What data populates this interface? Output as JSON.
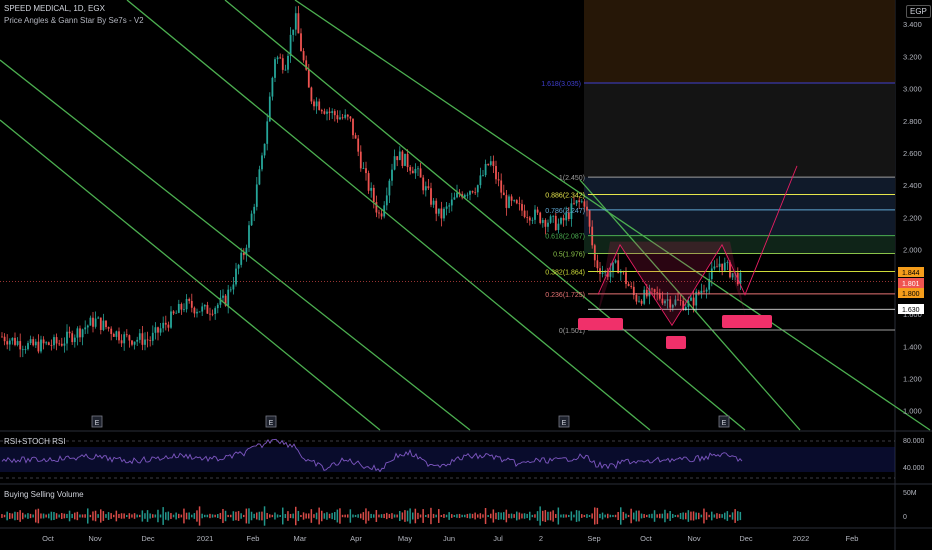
{
  "header": {
    "symbol": "SPEED MEDICAL, 1D, EGX",
    "indicator": "Price Angles & Gann Star By Se7s - V2",
    "currency": "EGP"
  },
  "panes": {
    "rsi_label": "RSI+STOCH RSI",
    "volume_label": "Buying Selling Volume"
  },
  "chart_data": {
    "type": "candlestick",
    "price_axis_ticks": [
      "3.400",
      "3.200",
      "3.000",
      "2.800",
      "2.600",
      "2.400",
      "2.200",
      "2.000",
      "1.800",
      "1.600",
      "1.400",
      "1.200",
      "1.000"
    ],
    "price_ylim": [
      0.88,
      3.55
    ],
    "time_axis_labels": [
      "Oct",
      "Nov",
      "Dec",
      "2021",
      "Feb",
      "Mar",
      "Apr",
      "May",
      "Jun",
      "Jul",
      "2",
      "Sep",
      "Oct",
      "Nov",
      "Dec",
      "2022",
      "Feb"
    ],
    "event_markers": [
      "E",
      "E",
      "E",
      "E"
    ],
    "fib_levels": [
      {
        "label": "1.618(3.035)",
        "value": 3.035,
        "color": "#3f3fd0"
      },
      {
        "label": "1(2.450)",
        "value": 2.45,
        "color": "#9e9e9e"
      },
      {
        "label": "0.886(2.342)",
        "value": 2.342,
        "color": "#e6e64c"
      },
      {
        "label": "0.786(2.247)",
        "value": 2.247,
        "color": "#5fa8d3"
      },
      {
        "label": "0.618(2.087)",
        "value": 2.087,
        "color": "#4caf50"
      },
      {
        "label": "0.5(1.976)",
        "value": 1.976,
        "color": "#8bc34a"
      },
      {
        "label": "0.382(1.864)",
        "value": 1.864,
        "color": "#cddc39"
      },
      {
        "label": "0.236(1.725)",
        "value": 1.725,
        "color": "#e57373"
      },
      {
        "label": "0(1.501)",
        "value": 1.501,
        "color": "#9e9e9e"
      }
    ],
    "price_badges": [
      {
        "text": "1.844",
        "value": 1.844,
        "bg": "#f59d1b",
        "fg": "#000000"
      },
      {
        "text": "1.801",
        "value": 1.801,
        "bg": "#ef5350",
        "fg": "#ffffff"
      },
      {
        "text": "1.800",
        "value": 1.8,
        "bg": "#f59d1b",
        "fg": "#000000"
      },
      {
        "text": "1.630",
        "value": 1.63,
        "bg": "#ffffff",
        "fg": "#000000"
      }
    ],
    "rsi_axis_ticks": [
      "80.000",
      "40.000"
    ],
    "volume_axis_ticks": [
      "50M",
      "0"
    ]
  }
}
